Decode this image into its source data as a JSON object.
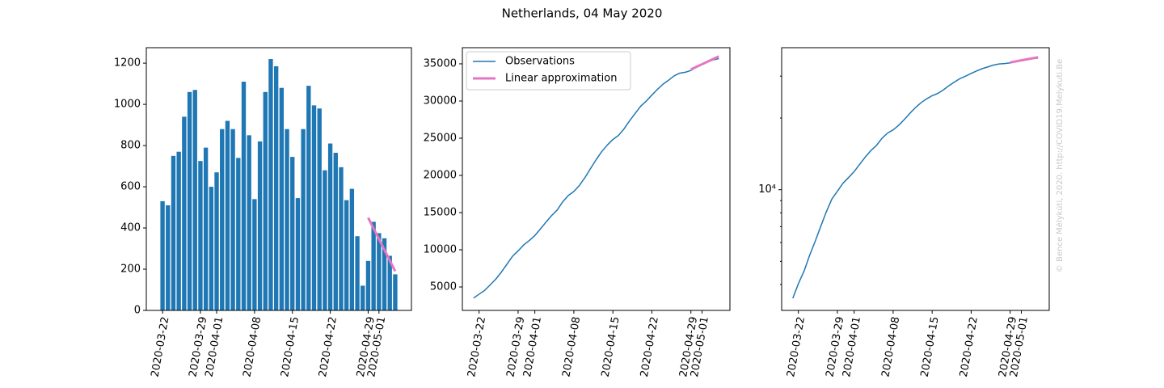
{
  "title": "Netherlands, 04 May 2020",
  "credit": "© Bence Mélykúti, 2020. http://COVID19.Melykuti.Be",
  "chart_data": [
    {
      "type": "bar",
      "color": "#1f77b4",
      "x": [
        "2020-03-22",
        "2020-03-23",
        "2020-03-24",
        "2020-03-25",
        "2020-03-26",
        "2020-03-27",
        "2020-03-28",
        "2020-03-29",
        "2020-03-30",
        "2020-03-31",
        "2020-04-01",
        "2020-04-02",
        "2020-04-03",
        "2020-04-04",
        "2020-04-05",
        "2020-04-06",
        "2020-04-07",
        "2020-04-08",
        "2020-04-09",
        "2020-04-10",
        "2020-04-11",
        "2020-04-12",
        "2020-04-13",
        "2020-04-14",
        "2020-04-15",
        "2020-04-16",
        "2020-04-17",
        "2020-04-18",
        "2020-04-19",
        "2020-04-20",
        "2020-04-21",
        "2020-04-22",
        "2020-04-23",
        "2020-04-24",
        "2020-04-25",
        "2020-04-26",
        "2020-04-27",
        "2020-04-28",
        "2020-04-29",
        "2020-04-30",
        "2020-05-01",
        "2020-05-02",
        "2020-05-03",
        "2020-05-04"
      ],
      "values": [
        530,
        510,
        750,
        770,
        940,
        1060,
        1070,
        725,
        790,
        600,
        670,
        880,
        920,
        880,
        740,
        1110,
        850,
        540,
        820,
        1060,
        1220,
        1185,
        1080,
        880,
        745,
        545,
        880,
        1090,
        995,
        980,
        680,
        810,
        765,
        695,
        535,
        590,
        360,
        120,
        240,
        430,
        375,
        350,
        265,
        175
      ],
      "overlay": {
        "color": "#e377c2",
        "x": [
          "2020-04-29",
          "2020-04-30",
          "2020-05-01",
          "2020-05-02",
          "2020-05-03",
          "2020-05-04"
        ],
        "values": [
          450,
          398,
          346,
          294,
          242,
          190
        ]
      },
      "xlim": [
        "2020-03-19",
        "2020-05-07"
      ],
      "xticks": [
        "2020-03-22",
        "2020-03-29",
        "2020-04-01",
        "2020-04-08",
        "2020-04-15",
        "2020-04-22",
        "2020-04-29",
        "2020-05-01"
      ],
      "ylim": [
        0,
        1275
      ],
      "yticks": [
        0,
        200,
        400,
        600,
        800,
        1000,
        1200
      ]
    },
    {
      "type": "line",
      "legend": "upper left",
      "series": [
        {
          "name": "Observations",
          "color": "#1f77b4",
          "width": 1.5,
          "x": [
            "2020-03-21",
            "2020-03-22",
            "2020-03-23",
            "2020-03-24",
            "2020-03-25",
            "2020-03-26",
            "2020-03-27",
            "2020-03-28",
            "2020-03-29",
            "2020-03-30",
            "2020-03-31",
            "2020-04-01",
            "2020-04-02",
            "2020-04-03",
            "2020-04-04",
            "2020-04-05",
            "2020-04-06",
            "2020-04-07",
            "2020-04-08",
            "2020-04-09",
            "2020-04-10",
            "2020-04-11",
            "2020-04-12",
            "2020-04-13",
            "2020-04-14",
            "2020-04-15",
            "2020-04-16",
            "2020-04-17",
            "2020-04-18",
            "2020-04-19",
            "2020-04-20",
            "2020-04-21",
            "2020-04-22",
            "2020-04-23",
            "2020-04-24",
            "2020-04-25",
            "2020-04-26",
            "2020-04-27",
            "2020-04-28",
            "2020-04-29",
            "2020-04-30",
            "2020-05-01",
            "2020-05-02",
            "2020-05-03",
            "2020-05-04"
          ],
          "values": [
            3500,
            4030,
            4540,
            5290,
            6060,
            7000,
            8060,
            9130,
            9855,
            10645,
            11245,
            11915,
            12795,
            13715,
            14595,
            15335,
            16445,
            17295,
            17835,
            18655,
            19715,
            20935,
            22120,
            23200,
            24080,
            24825,
            25370,
            26250,
            27340,
            28335,
            29315,
            29995,
            30805,
            31570,
            32265,
            32800,
            33390,
            33750,
            33870,
            34110,
            34540,
            34915,
            35265,
            35530,
            35705
          ]
        },
        {
          "name": "Linear approximation",
          "color": "#e377c2",
          "width": 3,
          "x": [
            "2020-04-29",
            "2020-04-30",
            "2020-05-01",
            "2020-05-02",
            "2020-05-03",
            "2020-05-04"
          ],
          "values": [
            34250,
            34600,
            34950,
            35300,
            35650,
            36000
          ]
        }
      ],
      "xlim": [
        "2020-03-19",
        "2020-05-06"
      ],
      "xticks": [
        "2020-03-22",
        "2020-03-29",
        "2020-04-01",
        "2020-04-08",
        "2020-04-15",
        "2020-04-22",
        "2020-04-29",
        "2020-05-01"
      ],
      "ylim": [
        1850,
        37170
      ],
      "yticks": [
        5000,
        10000,
        15000,
        20000,
        25000,
        30000,
        35000
      ]
    },
    {
      "type": "line",
      "log_y": true,
      "series": [
        {
          "color": "#1f77b4",
          "width": 1.5,
          "x": [
            "2020-03-21",
            "2020-03-22",
            "2020-03-23",
            "2020-03-24",
            "2020-03-25",
            "2020-03-26",
            "2020-03-27",
            "2020-03-28",
            "2020-03-29",
            "2020-03-30",
            "2020-03-31",
            "2020-04-01",
            "2020-04-02",
            "2020-04-03",
            "2020-04-04",
            "2020-04-05",
            "2020-04-06",
            "2020-04-07",
            "2020-04-08",
            "2020-04-09",
            "2020-04-10",
            "2020-04-11",
            "2020-04-12",
            "2020-04-13",
            "2020-04-14",
            "2020-04-15",
            "2020-04-16",
            "2020-04-17",
            "2020-04-18",
            "2020-04-19",
            "2020-04-20",
            "2020-04-21",
            "2020-04-22",
            "2020-04-23",
            "2020-04-24",
            "2020-04-25",
            "2020-04-26",
            "2020-04-27",
            "2020-04-28",
            "2020-04-29",
            "2020-04-30",
            "2020-05-01",
            "2020-05-02",
            "2020-05-03",
            "2020-05-04"
          ],
          "values": [
            3500,
            4030,
            4540,
            5290,
            6060,
            7000,
            8060,
            9130,
            9855,
            10645,
            11245,
            11915,
            12795,
            13715,
            14595,
            15335,
            16445,
            17295,
            17835,
            18655,
            19715,
            20935,
            22120,
            23200,
            24080,
            24825,
            25370,
            26250,
            27340,
            28335,
            29315,
            29995,
            30805,
            31570,
            32265,
            32800,
            33390,
            33750,
            33870,
            34110,
            34540,
            34915,
            35265,
            35530,
            35705
          ]
        },
        {
          "color": "#e377c2",
          "width": 3,
          "x": [
            "2020-04-29",
            "2020-04-30",
            "2020-05-01",
            "2020-05-02",
            "2020-05-03",
            "2020-05-04"
          ],
          "values": [
            34250,
            34600,
            34950,
            35300,
            35650,
            36000
          ]
        }
      ],
      "xlim": [
        "2020-03-19",
        "2020-05-06"
      ],
      "xticks": [
        "2020-03-22",
        "2020-03-29",
        "2020-04-01",
        "2020-04-08",
        "2020-04-15",
        "2020-04-22",
        "2020-04-29",
        "2020-05-01"
      ],
      "ylim": [
        3112,
        39500
      ],
      "yticks": [
        {
          "value": 10000,
          "label": "10⁴"
        }
      ],
      "yticks_minor": [
        4000,
        5000,
        6000,
        7000,
        8000,
        9000,
        20000,
        30000
      ]
    }
  ]
}
